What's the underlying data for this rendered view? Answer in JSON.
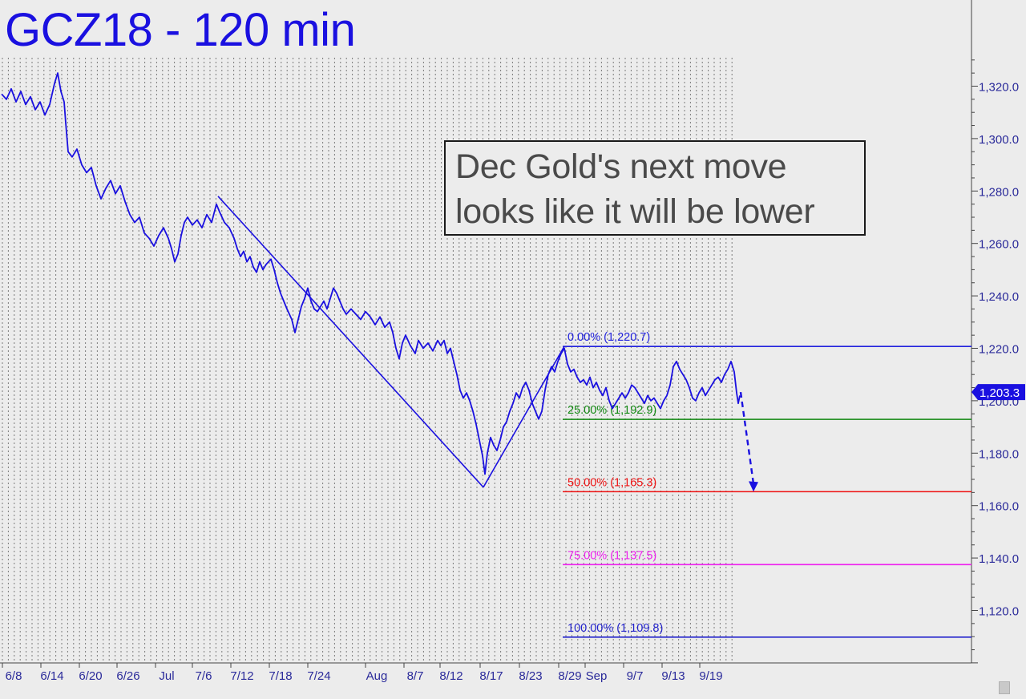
{
  "chart_data": {
    "type": "line",
    "title": "GCZ18 - 120 min",
    "annotation": "Dec Gold's next move looks like it will be lower",
    "ylim": [
      1100,
      1332
    ],
    "y_ticks": [
      1120,
      1140,
      1160,
      1180,
      1200,
      1220,
      1240,
      1260,
      1280,
      1300,
      1320
    ],
    "y_tick_labels": [
      "1,120.0",
      "1,140.0",
      "1,160.0",
      "1,180.0",
      "1,200.0",
      "1,220.0",
      "1,240.0",
      "1,260.0",
      "1,280.0",
      "1,300.0",
      "1,320.0"
    ],
    "x_tick_labels": [
      "6/8",
      "6/14",
      "6/20",
      "6/26",
      "Jul",
      "7/6",
      "7/12",
      "7/18",
      "7/24",
      "Aug",
      "8/7",
      "8/12",
      "8/17",
      "8/23",
      "8/29",
      "Sep",
      "9/7",
      "9/13",
      "9/19"
    ],
    "last_price": 1203.3,
    "last_price_label": "1,203.3",
    "series": [
      {
        "color": "#1a10e0",
        "values": [
          [
            0,
            1317
          ],
          [
            6,
            1315
          ],
          [
            12,
            1319
          ],
          [
            18,
            1314
          ],
          [
            24,
            1318
          ],
          [
            30,
            1313
          ],
          [
            36,
            1316
          ],
          [
            42,
            1311
          ],
          [
            48,
            1314
          ],
          [
            54,
            1309
          ],
          [
            60,
            1313
          ],
          [
            66,
            1321
          ],
          [
            70,
            1325
          ],
          [
            74,
            1318
          ],
          [
            78,
            1314
          ],
          [
            80,
            1306
          ],
          [
            83,
            1295
          ],
          [
            88,
            1293
          ],
          [
            94,
            1296
          ],
          [
            100,
            1290
          ],
          [
            106,
            1287
          ],
          [
            112,
            1289
          ],
          [
            118,
            1282
          ],
          [
            124,
            1277
          ],
          [
            130,
            1281
          ],
          [
            136,
            1284
          ],
          [
            142,
            1279
          ],
          [
            148,
            1282
          ],
          [
            154,
            1276
          ],
          [
            160,
            1271
          ],
          [
            166,
            1268
          ],
          [
            172,
            1270
          ],
          [
            178,
            1264
          ],
          [
            184,
            1262
          ],
          [
            190,
            1259
          ],
          [
            196,
            1263
          ],
          [
            202,
            1266
          ],
          [
            208,
            1262
          ],
          [
            212,
            1258
          ],
          [
            216,
            1253
          ],
          [
            220,
            1256
          ],
          [
            224,
            1263
          ],
          [
            228,
            1268
          ],
          [
            232,
            1270
          ],
          [
            238,
            1267
          ],
          [
            244,
            1269
          ],
          [
            250,
            1266
          ],
          [
            256,
            1271
          ],
          [
            262,
            1268
          ],
          [
            268,
            1275
          ],
          [
            272,
            1272
          ],
          [
            278,
            1268
          ],
          [
            284,
            1266
          ],
          [
            290,
            1262
          ],
          [
            294,
            1258
          ],
          [
            298,
            1255
          ],
          [
            302,
            1257
          ],
          [
            306,
            1253
          ],
          [
            310,
            1255
          ],
          [
            314,
            1251
          ],
          [
            318,
            1249
          ],
          [
            322,
            1253
          ],
          [
            326,
            1250
          ],
          [
            330,
            1252
          ],
          [
            336,
            1254
          ],
          [
            340,
            1250
          ],
          [
            344,
            1245
          ],
          [
            348,
            1241
          ],
          [
            352,
            1238
          ],
          [
            356,
            1235
          ],
          [
            362,
            1231
          ],
          [
            366,
            1226
          ],
          [
            370,
            1231
          ],
          [
            374,
            1236
          ],
          [
            378,
            1239
          ],
          [
            382,
            1243
          ],
          [
            386,
            1238
          ],
          [
            390,
            1235
          ],
          [
            394,
            1234
          ],
          [
            398,
            1236
          ],
          [
            402,
            1238
          ],
          [
            406,
            1235
          ],
          [
            410,
            1239
          ],
          [
            414,
            1243
          ],
          [
            418,
            1241
          ],
          [
            422,
            1238
          ],
          [
            426,
            1235
          ],
          [
            430,
            1233
          ],
          [
            436,
            1235
          ],
          [
            442,
            1233
          ],
          [
            448,
            1231
          ],
          [
            454,
            1234
          ],
          [
            460,
            1232
          ],
          [
            466,
            1229
          ],
          [
            472,
            1232
          ],
          [
            478,
            1228
          ],
          [
            484,
            1230
          ],
          [
            488,
            1226
          ],
          [
            492,
            1220
          ],
          [
            496,
            1216
          ],
          [
            500,
            1222
          ],
          [
            504,
            1225
          ],
          [
            510,
            1221
          ],
          [
            516,
            1218
          ],
          [
            520,
            1223
          ],
          [
            526,
            1220
          ],
          [
            532,
            1222
          ],
          [
            538,
            1219
          ],
          [
            544,
            1223
          ],
          [
            548,
            1221
          ],
          [
            552,
            1223
          ],
          [
            556,
            1218
          ],
          [
            560,
            1220
          ],
          [
            564,
            1215
          ],
          [
            568,
            1210
          ],
          [
            572,
            1204
          ],
          [
            576,
            1201
          ],
          [
            580,
            1203
          ],
          [
            584,
            1200
          ],
          [
            588,
            1196
          ],
          [
            592,
            1191
          ],
          [
            596,
            1185
          ],
          [
            600,
            1179
          ],
          [
            603,
            1172
          ],
          [
            606,
            1180
          ],
          [
            610,
            1186
          ],
          [
            614,
            1183
          ],
          [
            618,
            1181
          ],
          [
            622,
            1185
          ],
          [
            626,
            1190
          ],
          [
            630,
            1192
          ],
          [
            634,
            1196
          ],
          [
            638,
            1199
          ],
          [
            642,
            1203
          ],
          [
            646,
            1201
          ],
          [
            650,
            1205
          ],
          [
            654,
            1207
          ],
          [
            658,
            1204
          ],
          [
            662,
            1199
          ],
          [
            666,
            1196
          ],
          [
            670,
            1193
          ],
          [
            674,
            1196
          ],
          [
            678,
            1204
          ],
          [
            682,
            1210
          ],
          [
            686,
            1213
          ],
          [
            690,
            1211
          ],
          [
            694,
            1215
          ],
          [
            698,
            1218
          ],
          [
            702,
            1220
          ],
          [
            706,
            1214
          ],
          [
            710,
            1211
          ],
          [
            714,
            1212
          ],
          [
            718,
            1209
          ],
          [
            722,
            1207
          ],
          [
            726,
            1208
          ],
          [
            730,
            1206
          ],
          [
            734,
            1209
          ],
          [
            738,
            1205
          ],
          [
            742,
            1207
          ],
          [
            746,
            1204
          ],
          [
            750,
            1202
          ],
          [
            754,
            1205
          ],
          [
            758,
            1200
          ],
          [
            762,
            1197
          ],
          [
            766,
            1199
          ],
          [
            770,
            1201
          ],
          [
            774,
            1203
          ],
          [
            778,
            1201
          ],
          [
            782,
            1203
          ],
          [
            786,
            1206
          ],
          [
            790,
            1205
          ],
          [
            794,
            1203
          ],
          [
            798,
            1201
          ],
          [
            802,
            1199
          ],
          [
            806,
            1202
          ],
          [
            810,
            1200
          ],
          [
            814,
            1201
          ],
          [
            818,
            1199
          ],
          [
            822,
            1197
          ],
          [
            826,
            1200
          ],
          [
            830,
            1202
          ],
          [
            834,
            1206
          ],
          [
            838,
            1213
          ],
          [
            842,
            1215
          ],
          [
            846,
            1212
          ],
          [
            850,
            1210
          ],
          [
            854,
            1208
          ],
          [
            858,
            1205
          ],
          [
            862,
            1201
          ],
          [
            866,
            1200
          ],
          [
            870,
            1203
          ],
          [
            874,
            1205
          ],
          [
            878,
            1202
          ],
          [
            882,
            1204
          ],
          [
            886,
            1206
          ],
          [
            890,
            1208
          ],
          [
            894,
            1209
          ],
          [
            898,
            1207
          ],
          [
            902,
            1210
          ],
          [
            906,
            1212
          ],
          [
            910,
            1215
          ],
          [
            914,
            1211
          ],
          [
            917,
            1203
          ],
          [
            919,
            1199
          ],
          [
            921,
            1202
          ]
        ]
      }
    ],
    "drawn_lines": [
      {
        "kind": "trendline",
        "from": [
          270,
          1278
        ],
        "to": [
          601,
          1167
        ]
      },
      {
        "kind": "trendline",
        "from": [
          601,
          1167
        ],
        "to": [
          702,
          1220.7
        ]
      },
      {
        "kind": "projection-arrow",
        "from": [
          922,
          1203.3
        ],
        "to": [
          938,
          1165.3
        ]
      }
    ],
    "retracement_levels": [
      {
        "pct": "0.00%",
        "value": 1220.7,
        "label": "0.00% (1,220.7)",
        "color": "#2222dd"
      },
      {
        "pct": "25.00%",
        "value": 1192.9,
        "label": "25.00% (1,192.9)",
        "color": "#118811"
      },
      {
        "pct": "50.00%",
        "value": 1165.3,
        "label": "50.00% (1,165.3)",
        "color": "#ee1111"
      },
      {
        "pct": "75.00%",
        "value": 1137.5,
        "label": "75.00% (1,137.5)",
        "color": "#ee22ee"
      },
      {
        "pct": "100.00%",
        "value": 1109.8,
        "label": "100.00% (1,109.8)",
        "color": "#2222cc"
      }
    ],
    "grid": true
  }
}
